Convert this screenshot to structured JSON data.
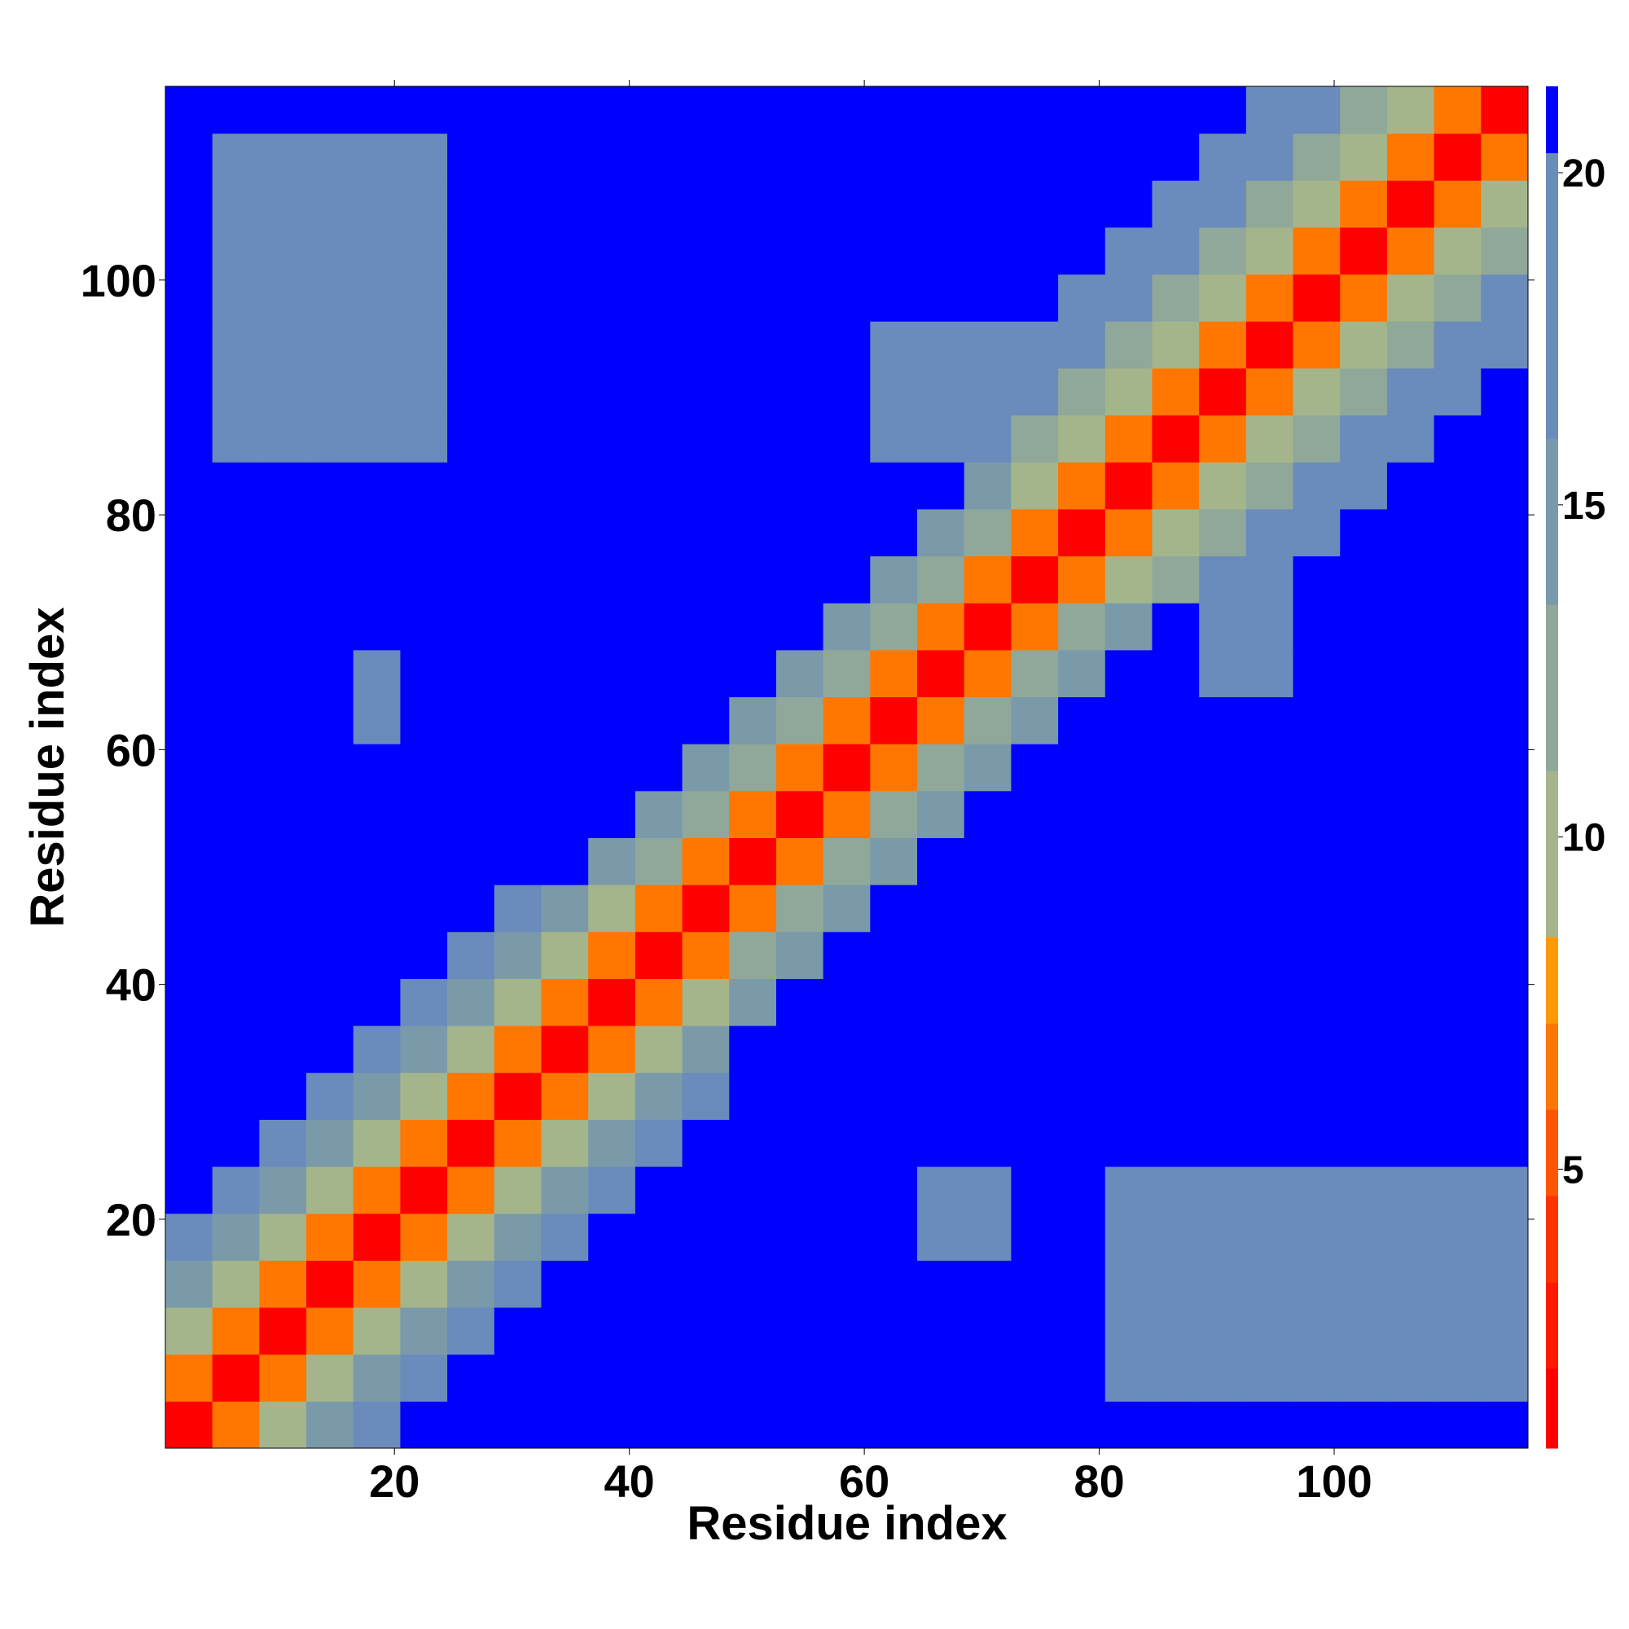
{
  "chart_data": {
    "type": "heatmap",
    "xlabel": "Residue index",
    "ylabel": "Residue index",
    "xbins": [
      0.5,
      4.5,
      8.5,
      12.5,
      16.5,
      20.5,
      24.5,
      28.5,
      32.5,
      36.5,
      40.5,
      44.5,
      48.5,
      52.5,
      56.5,
      60.5,
      64.5,
      68.5,
      72.5,
      76.5,
      80.5,
      84.5,
      88.5,
      92.5,
      96.5,
      100.5,
      104.5,
      108.5,
      112.5,
      116.5
    ],
    "ybins": [
      0.5,
      4.5,
      8.5,
      12.5,
      16.5,
      20.5,
      24.5,
      28.5,
      32.5,
      36.5,
      40.5,
      44.5,
      48.5,
      52.5,
      56.5,
      60.5,
      64.5,
      68.5,
      72.5,
      76.5,
      80.5,
      84.5,
      88.5,
      92.5,
      96.5,
      100.5,
      104.5,
      108.5,
      112.5,
      116.5
    ],
    "z": [
      [
        2,
        6,
        10,
        14,
        18,
        22,
        22,
        22,
        22,
        22,
        22,
        22,
        22,
        22,
        22,
        22,
        22,
        22,
        22,
        22,
        22,
        22,
        22,
        22,
        22,
        22,
        22,
        22,
        22
      ],
      [
        6,
        2,
        6,
        10,
        14,
        18,
        22,
        22,
        22,
        22,
        22,
        22,
        22,
        22,
        22,
        22,
        22,
        22,
        22,
        22,
        19,
        19,
        19,
        19,
        19,
        19,
        19,
        19,
        19
      ],
      [
        10,
        6,
        2,
        6,
        10,
        14,
        18,
        22,
        22,
        22,
        22,
        22,
        22,
        22,
        22,
        22,
        22,
        22,
        22,
        22,
        19,
        19,
        19,
        19,
        19,
        19,
        19,
        19,
        19
      ],
      [
        14,
        10,
        6,
        2,
        6,
        10,
        14,
        18,
        22,
        22,
        22,
        22,
        22,
        22,
        22,
        22,
        22,
        22,
        22,
        22,
        19,
        19,
        19,
        19,
        19,
        19,
        19,
        19,
        19
      ],
      [
        18,
        14,
        10,
        6,
        2,
        6,
        10,
        14,
        18,
        22,
        22,
        22,
        22,
        22,
        22,
        22,
        20,
        20,
        22,
        22,
        19,
        19,
        19,
        19,
        19,
        19,
        19,
        19,
        19
      ],
      [
        22,
        18,
        14,
        10,
        6,
        2,
        6,
        10,
        14,
        18,
        22,
        22,
        22,
        22,
        22,
        22,
        20,
        20,
        22,
        22,
        19,
        19,
        19,
        19,
        19,
        19,
        19,
        19,
        19
      ],
      [
        22,
        22,
        18,
        14,
        10,
        6,
        2,
        6,
        10,
        14,
        18,
        22,
        22,
        22,
        22,
        22,
        22,
        22,
        22,
        22,
        22,
        22,
        22,
        22,
        22,
        22,
        22,
        22,
        22
      ],
      [
        22,
        22,
        22,
        18,
        14,
        10,
        6,
        2,
        6,
        10,
        14,
        18,
        22,
        22,
        22,
        22,
        22,
        22,
        22,
        22,
        22,
        22,
        22,
        22,
        22,
        22,
        22,
        22,
        22
      ],
      [
        22,
        22,
        22,
        22,
        18,
        14,
        10,
        6,
        2,
        6,
        10,
        14,
        22,
        22,
        22,
        22,
        22,
        22,
        22,
        22,
        22,
        22,
        22,
        22,
        22,
        22,
        22,
        22,
        22
      ],
      [
        22,
        22,
        22,
        22,
        22,
        18,
        14,
        10,
        6,
        2,
        6,
        10,
        16,
        22,
        22,
        22,
        22,
        22,
        22,
        22,
        22,
        22,
        22,
        22,
        22,
        22,
        22,
        22,
        22
      ],
      [
        22,
        22,
        22,
        22,
        22,
        22,
        18,
        14,
        10,
        6,
        2,
        6,
        12,
        16,
        22,
        22,
        22,
        22,
        22,
        22,
        22,
        22,
        22,
        22,
        22,
        22,
        22,
        22,
        22
      ],
      [
        22,
        22,
        22,
        22,
        22,
        22,
        22,
        18,
        14,
        10,
        6,
        2,
        6,
        12,
        16,
        22,
        22,
        22,
        22,
        22,
        22,
        22,
        22,
        22,
        22,
        22,
        22,
        22,
        22
      ],
      [
        22,
        22,
        22,
        22,
        22,
        22,
        22,
        22,
        22,
        16,
        12,
        6,
        2,
        6,
        12,
        16,
        22,
        22,
        22,
        22,
        22,
        22,
        22,
        22,
        22,
        22,
        22,
        22,
        22
      ],
      [
        22,
        22,
        22,
        22,
        22,
        22,
        22,
        22,
        22,
        22,
        16,
        12,
        6,
        2,
        6,
        12,
        16,
        22,
        22,
        22,
        22,
        22,
        22,
        22,
        22,
        22,
        22,
        22,
        22
      ],
      [
        22,
        22,
        22,
        22,
        22,
        22,
        22,
        22,
        22,
        22,
        22,
        16,
        12,
        6,
        2,
        6,
        12,
        16,
        22,
        22,
        22,
        22,
        22,
        22,
        22,
        22,
        22,
        22,
        22
      ],
      [
        22,
        22,
        22,
        22,
        20,
        22,
        22,
        22,
        22,
        22,
        22,
        22,
        16,
        12,
        6,
        2,
        6,
        12,
        16,
        22,
        22,
        22,
        22,
        22,
        22,
        22,
        22,
        22,
        22
      ],
      [
        22,
        22,
        22,
        22,
        20,
        22,
        22,
        22,
        22,
        22,
        22,
        22,
        22,
        16,
        12,
        6,
        2,
        6,
        12,
        16,
        22,
        22,
        19,
        19,
        22,
        22,
        22,
        22,
        22
      ],
      [
        22,
        22,
        22,
        22,
        22,
        22,
        22,
        22,
        22,
        22,
        22,
        22,
        22,
        22,
        16,
        12,
        6,
        2,
        6,
        12,
        16,
        22,
        19,
        19,
        22,
        22,
        22,
        22,
        22
      ],
      [
        22,
        22,
        22,
        22,
        22,
        22,
        22,
        22,
        22,
        22,
        22,
        22,
        22,
        22,
        22,
        16,
        12,
        6,
        2,
        6,
        10,
        13,
        17,
        19,
        22,
        22,
        22,
        22,
        22
      ],
      [
        22,
        22,
        22,
        22,
        22,
        22,
        22,
        22,
        22,
        22,
        22,
        22,
        22,
        22,
        22,
        22,
        16,
        12,
        6,
        2,
        6,
        10,
        13,
        17,
        19,
        22,
        22,
        22,
        22
      ],
      [
        22,
        22,
        22,
        22,
        22,
        22,
        22,
        22,
        22,
        22,
        22,
        22,
        22,
        22,
        22,
        22,
        22,
        16,
        10,
        6,
        2,
        6,
        10,
        13,
        17,
        19,
        22,
        22,
        22
      ],
      [
        22,
        20,
        20,
        20,
        20,
        20,
        22,
        22,
        22,
        22,
        22,
        22,
        22,
        22,
        22,
        19,
        19,
        19,
        13,
        10,
        6,
        2,
        6,
        10,
        13,
        17,
        19,
        22,
        22
      ],
      [
        22,
        19,
        19,
        19,
        19,
        19,
        22,
        22,
        22,
        22,
        22,
        22,
        22,
        22,
        22,
        19,
        19,
        19,
        17,
        13,
        10,
        6,
        2,
        6,
        10,
        13,
        17,
        19,
        22
      ],
      [
        22,
        19,
        19,
        19,
        19,
        19,
        22,
        22,
        22,
        22,
        22,
        22,
        22,
        22,
        22,
        19,
        19,
        19,
        19,
        17,
        13,
        10,
        6,
        2,
        6,
        10,
        13,
        17,
        19
      ],
      [
        22,
        19,
        19,
        19,
        19,
        19,
        22,
        22,
        22,
        22,
        22,
        22,
        22,
        22,
        22,
        22,
        22,
        22,
        22,
        19,
        17,
        13,
        10,
        6,
        2,
        6,
        10,
        13,
        17
      ],
      [
        22,
        19,
        19,
        19,
        19,
        19,
        22,
        22,
        22,
        22,
        22,
        22,
        22,
        22,
        22,
        22,
        22,
        22,
        22,
        22,
        19,
        17,
        13,
        10,
        6,
        2,
        6,
        10,
        13
      ],
      [
        22,
        19,
        19,
        19,
        19,
        19,
        22,
        22,
        22,
        22,
        22,
        22,
        22,
        22,
        22,
        22,
        22,
        22,
        22,
        22,
        22,
        19,
        17,
        13,
        10,
        6,
        2,
        6,
        10
      ],
      [
        22,
        19,
        19,
        19,
        19,
        19,
        22,
        22,
        22,
        22,
        22,
        22,
        22,
        22,
        22,
        22,
        22,
        22,
        22,
        22,
        22,
        22,
        19,
        17,
        13,
        10,
        6,
        2,
        6
      ],
      [
        22,
        22,
        22,
        22,
        22,
        22,
        22,
        22,
        22,
        22,
        22,
        22,
        22,
        22,
        22,
        22,
        22,
        22,
        22,
        22,
        22,
        22,
        22,
        19,
        17,
        13,
        10,
        6,
        2
      ]
    ],
    "xlim": [
      0.5,
      116.5
    ],
    "ylim": [
      0.5,
      116.5
    ],
    "xticks": [
      20,
      40,
      60,
      80,
      100
    ],
    "yticks": [
      20,
      40,
      60,
      80,
      100
    ],
    "colorbar": {
      "lim": [
        0.8,
        21.3
      ],
      "ticks": [
        5,
        10,
        15,
        20
      ],
      "levels": [
        {
          "to": 2,
          "color": "#ff0000"
        },
        {
          "to": 3.3,
          "color": "#ff1a00"
        },
        {
          "to": 4.6,
          "color": "#ff3300"
        },
        {
          "to": 5.9,
          "color": "#ff5500"
        },
        {
          "to": 7.2,
          "color": "#ff7700"
        },
        {
          "to": 8.5,
          "color": "#ff9900"
        },
        {
          "to": 11,
          "color": "#a4b58c"
        },
        {
          "to": 13.5,
          "color": "#8fa89a"
        },
        {
          "to": 16,
          "color": "#7a9aaa"
        },
        {
          "to": 20.3,
          "color": "#6a8bbb"
        },
        {
          "to": 21.3,
          "color": "#0000ff"
        }
      ]
    }
  }
}
